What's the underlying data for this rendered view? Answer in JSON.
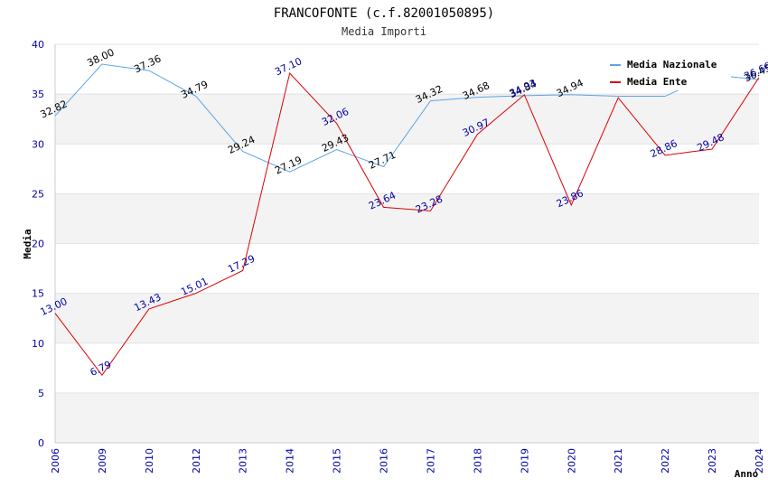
{
  "chart_data": {
    "type": "line",
    "title": "FRANCOFONTE (c.f.82001050895)",
    "subtitle": "Media Importi",
    "xlabel": "Anno",
    "ylabel": "Media",
    "ylim": [
      0,
      40
    ],
    "yticks": [
      "0",
      "5",
      "10",
      "15",
      "20",
      "25",
      "30",
      "35",
      "40"
    ],
    "categories": [
      "2006",
      "2009",
      "2010",
      "2012",
      "2013",
      "2014",
      "2015",
      "2016",
      "2017",
      "2018",
      "2019",
      "2020",
      "2021",
      "2022",
      "2023",
      "2024"
    ],
    "series": [
      {
        "name": "Media Nazionale",
        "color": "#5aa5e6",
        "values": [
          32.82,
          38.0,
          37.36,
          34.79,
          29.24,
          27.19,
          29.43,
          27.71,
          34.32,
          34.68,
          34.84,
          34.94,
          34.78,
          34.78,
          36.94,
          36.45
        ],
        "labels": [
          "32.82",
          "38.00",
          "37.36",
          "34.79",
          "29.24",
          "27.19",
          "29.43",
          "27.71",
          "34.32",
          "34.68",
          "34.84",
          "34.94",
          "",
          "",
          "",
          "36.45"
        ]
      },
      {
        "name": "Media Ente",
        "color": "#dd0000",
        "values": [
          13.0,
          6.79,
          13.43,
          15.01,
          17.29,
          37.1,
          32.06,
          23.64,
          23.28,
          30.97,
          34.93,
          23.86,
          34.63,
          28.86,
          29.48,
          36.66
        ],
        "labels": [
          "13.00",
          "6.79",
          "13.43",
          "15.01",
          "17.29",
          "37.10",
          "32.06",
          "23.64",
          "23.28",
          "30.97",
          "34.93",
          "23.86",
          "",
          "28.86",
          "29.48",
          "36.66"
        ]
      }
    ],
    "legend_position": "top-right",
    "grid": true
  }
}
